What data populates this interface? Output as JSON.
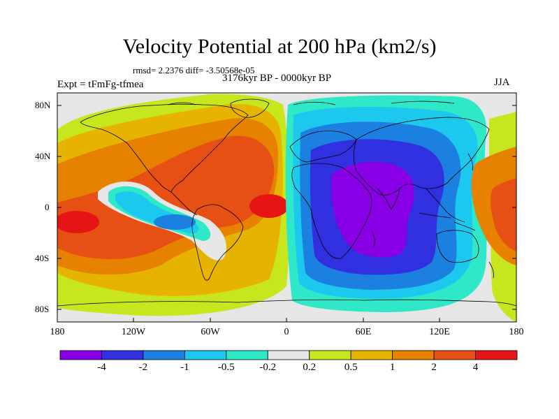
{
  "title": "Velocity Potential at 200 hPa (km2/s)",
  "stats": "rmsd= 2.2376 diff= -3.50568e-05",
  "experiment": "Expt = tFmFg-tfmea",
  "period": "3176kyr BP - 0000kyr BP",
  "season": "JJA",
  "axes": {
    "y_ticks": [
      "80N",
      "40N",
      "0",
      "40S",
      "80S"
    ],
    "x_ticks": [
      "180",
      "120W",
      "60W",
      "0",
      "60E",
      "120E",
      "180"
    ]
  },
  "colorbar": {
    "colors": [
      "#8a00e6",
      "#3030e0",
      "#1c80e0",
      "#1cc8ee",
      "#2ee8c8",
      "#e6e6e6",
      "#c8e61e",
      "#e6b400",
      "#e68200",
      "#e65014",
      "#e61414"
    ],
    "labels": [
      "-4",
      "-2",
      "-1",
      "-0.5",
      "-0.2",
      "0.2",
      "0.5",
      "1",
      "2",
      "4"
    ]
  },
  "colors": {
    "background": "#e6e6e6",
    "coastline": "#000000"
  }
}
